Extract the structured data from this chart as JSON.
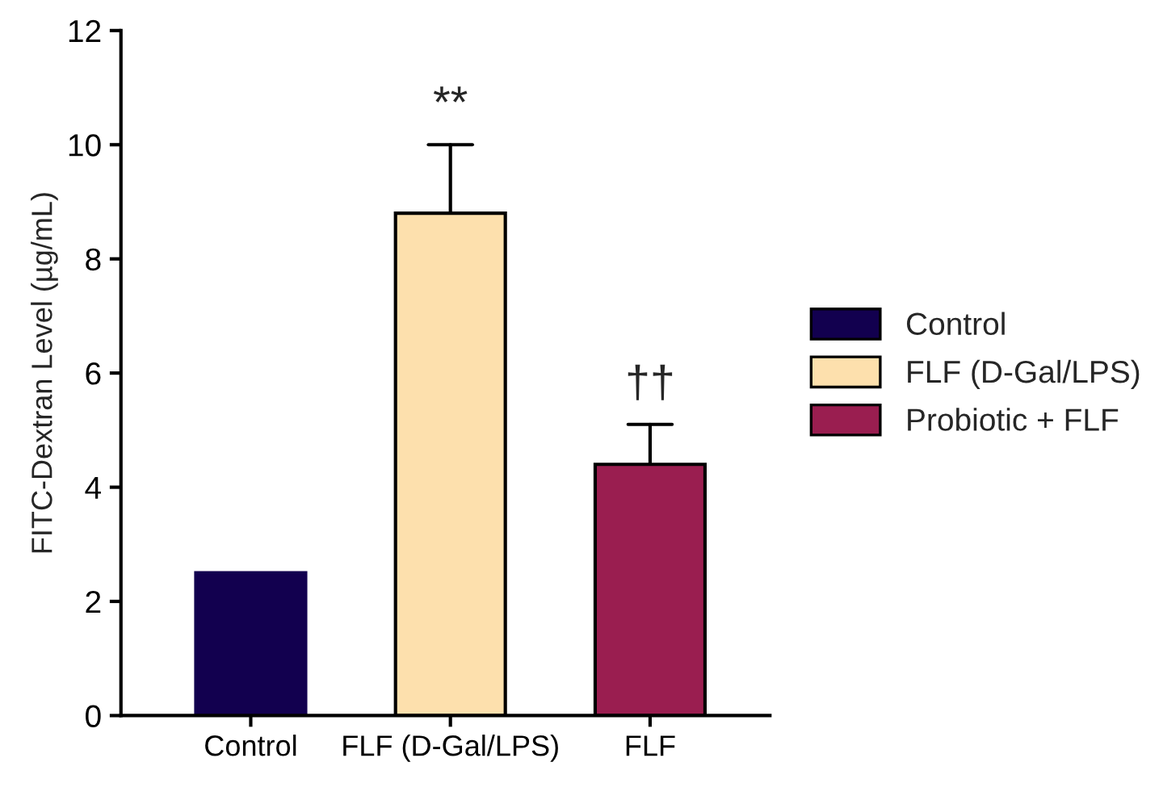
{
  "chart_data": {
    "type": "bar",
    "ylabel": "FITC-Dextran Level (µg/mL)",
    "categories": [
      "Control",
      "FLF (D-Gal/LPS)",
      "FLF"
    ],
    "series": [
      {
        "name": "Control",
        "color": "#12004f",
        "values": [
          2.5,
          null,
          null
        ],
        "errors": [
          null,
          null,
          null
        ]
      },
      {
        "name": "FLF (D-Gal/LPS)",
        "color": "#fde0ad",
        "values": [
          null,
          8.8,
          null
        ],
        "errors": [
          null,
          [
            8.8,
            10.0
          ],
          null
        ]
      },
      {
        "name": "Probiotic + FLF",
        "color": "#9a1e50",
        "values": [
          null,
          null,
          4.4
        ],
        "errors": [
          null,
          null,
          [
            4.4,
            5.1
          ]
        ]
      }
    ],
    "ylim": [
      0,
      12
    ],
    "yticks": [
      0,
      2,
      4,
      6,
      8,
      10,
      12
    ],
    "annotations": [
      {
        "text": "**",
        "x": "FLF (D-Gal/LPS)",
        "y": 10.0
      },
      {
        "text": "††",
        "x": "FLF",
        "y": 5.1
      }
    ],
    "grid": false,
    "legend": "right"
  }
}
